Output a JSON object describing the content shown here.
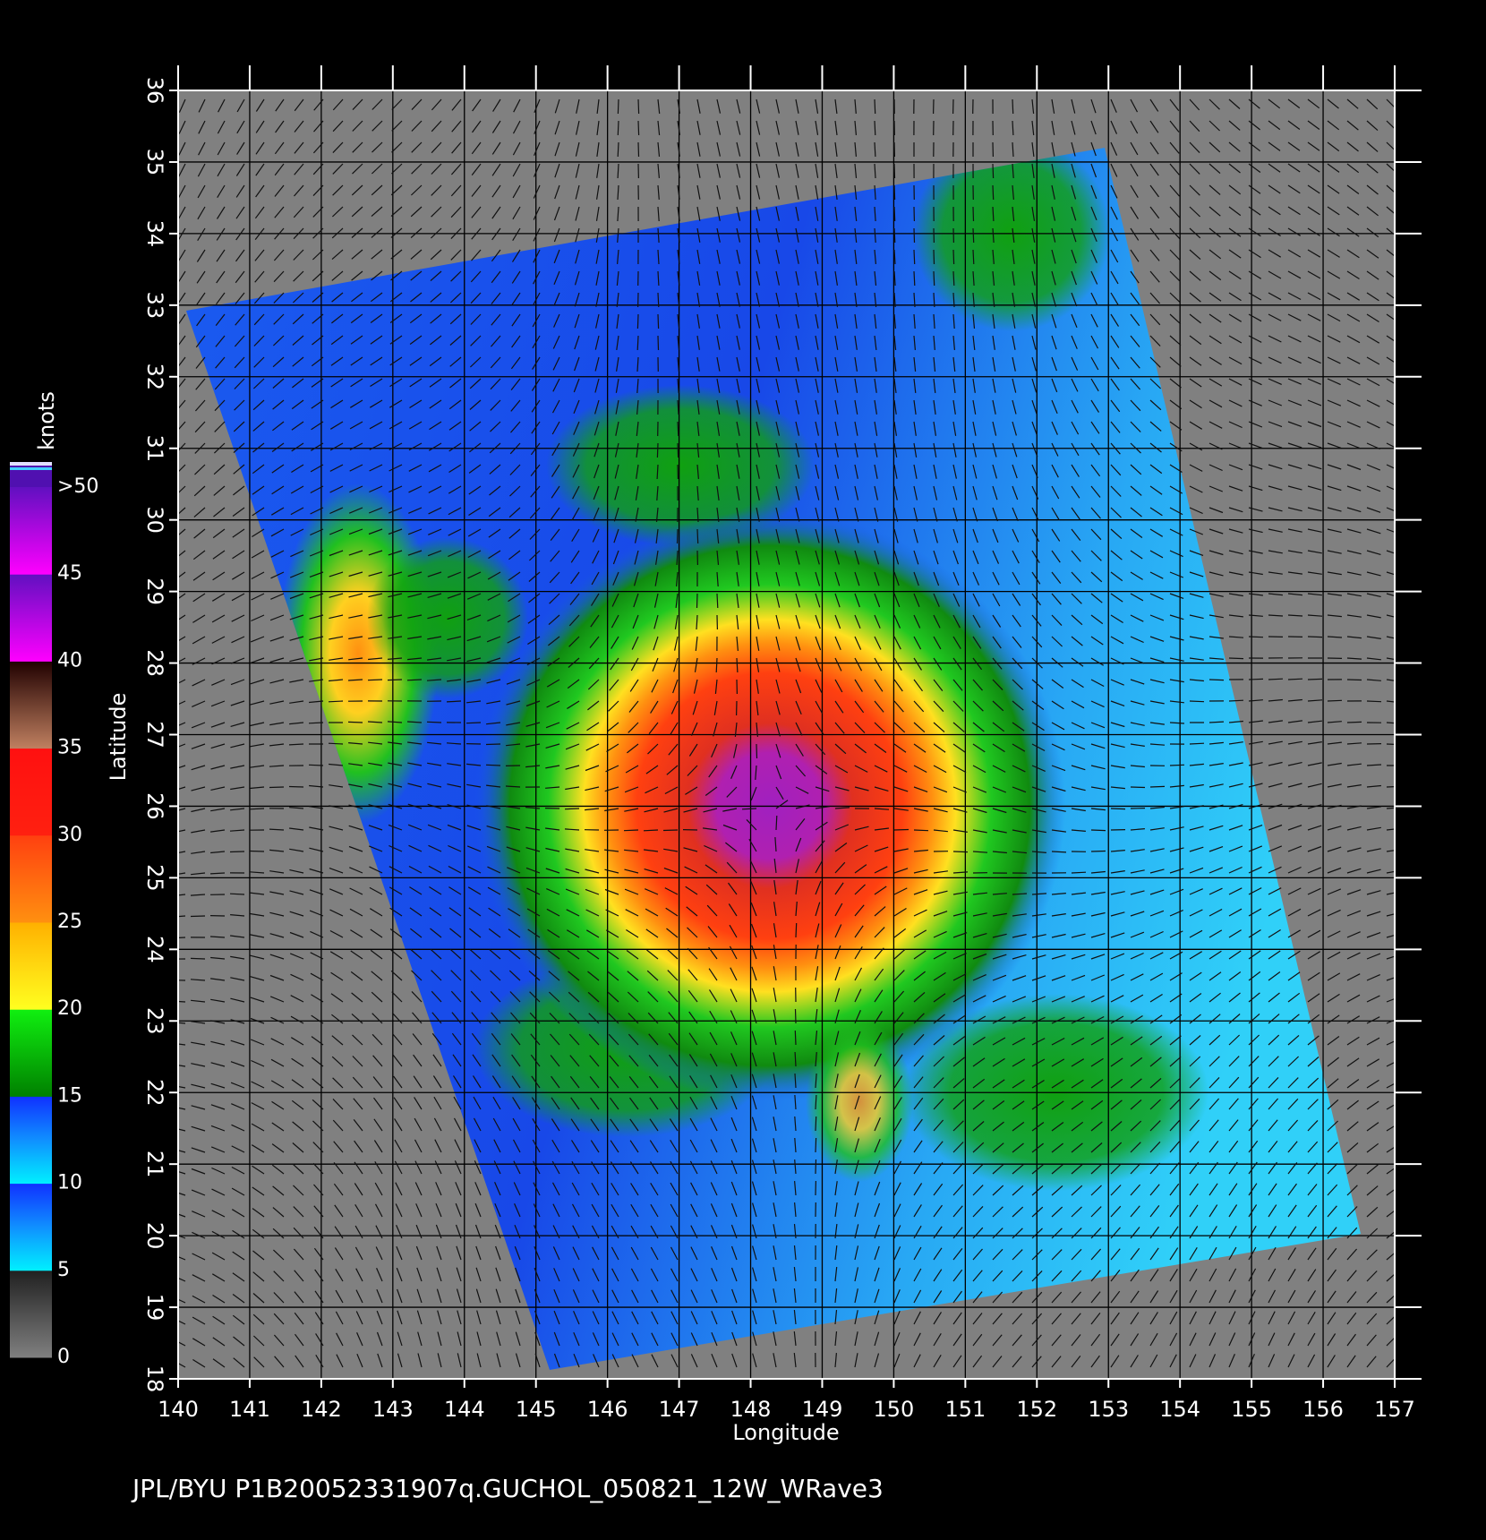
{
  "map": {
    "x_axis": {
      "label": "Longitude",
      "ticks": [
        140,
        141,
        142,
        143,
        144,
        145,
        146,
        147,
        148,
        149,
        150,
        151,
        152,
        153,
        154,
        155,
        156,
        157
      ]
    },
    "y_axis": {
      "label": "Latitude",
      "ticks": [
        18,
        19,
        20,
        21,
        22,
        23,
        24,
        25,
        26,
        27,
        28,
        29,
        30,
        31,
        32,
        33,
        34,
        35,
        36
      ]
    },
    "colorbar": {
      "unit": "knots",
      "ticks": [
        0,
        5,
        10,
        15,
        20,
        25,
        30,
        35,
        40,
        45,
        {
          "value": 50,
          "label": ">50"
        }
      ]
    },
    "caption": "JPL/BYU  P1B20052331907q.GUCHOL_050821_12W_WRave3"
  }
}
